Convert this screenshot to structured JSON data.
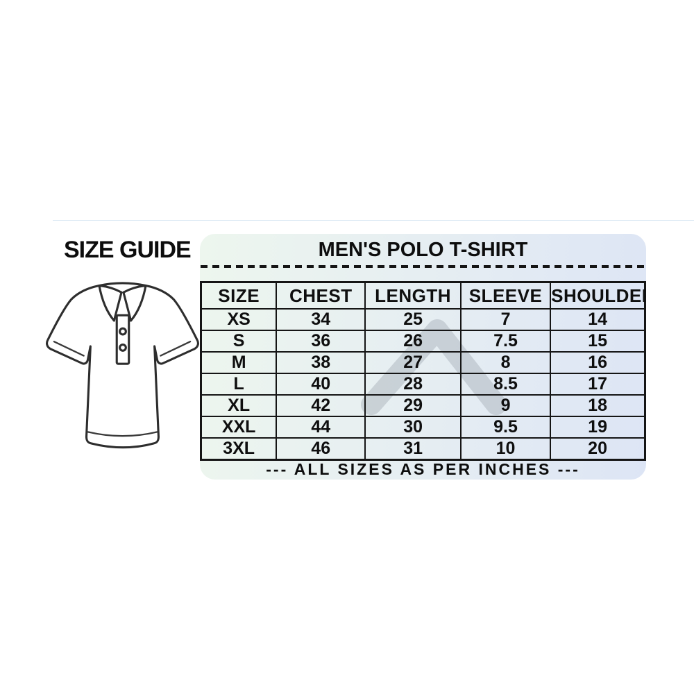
{
  "left": {
    "title": "SIZE GUIDE"
  },
  "panel": {
    "title": "MEN'S POLO T-SHIRT",
    "footer": "--- ALL SIZES AS PER INCHES ---",
    "table": {
      "columns": [
        "SIZE",
        "CHEST",
        "LENGTH",
        "SLEEVE",
        "SHOULDER"
      ],
      "rows": [
        [
          "XS",
          "34",
          "25",
          "7",
          "14"
        ],
        [
          "S",
          "36",
          "26",
          "7.5",
          "15"
        ],
        [
          "M",
          "38",
          "27",
          "8",
          "16"
        ],
        [
          "L",
          "40",
          "28",
          "8.5",
          "17"
        ],
        [
          "XL",
          "42",
          "29",
          "9",
          "18"
        ],
        [
          "XXL",
          "44",
          "30",
          "9.5",
          "19"
        ],
        [
          "3XL",
          "46",
          "31",
          "10",
          "20"
        ]
      ]
    }
  },
  "icons": {
    "shirt": "polo-shirt-line-drawing",
    "watermark": "chevron-watermark"
  },
  "colors": {
    "panel_gradient_start": "#edf6ee",
    "panel_gradient_end": "#dde5f5",
    "border": "#151515",
    "text": "#0d0d0d",
    "watermark": "rgba(165,172,182,0.45)",
    "background": "#ffffff"
  },
  "chart_data": {
    "type": "table",
    "title": "MEN'S POLO T-SHIRT",
    "subtitle": "SIZE GUIDE",
    "columns": [
      "SIZE",
      "CHEST",
      "LENGTH",
      "SLEEVE",
      "SHOULDER"
    ],
    "rows": [
      [
        "XS",
        34,
        25,
        7,
        14
      ],
      [
        "S",
        36,
        26,
        7.5,
        15
      ],
      [
        "M",
        38,
        27,
        8,
        16
      ],
      [
        "L",
        40,
        28,
        8.5,
        17
      ],
      [
        "XL",
        42,
        29,
        9,
        18
      ],
      [
        "XXL",
        44,
        30,
        9.5,
        19
      ],
      [
        "3XL",
        46,
        31,
        10,
        20
      ]
    ],
    "units": "inches",
    "note": "--- ALL SIZES AS PER INCHES ---"
  }
}
